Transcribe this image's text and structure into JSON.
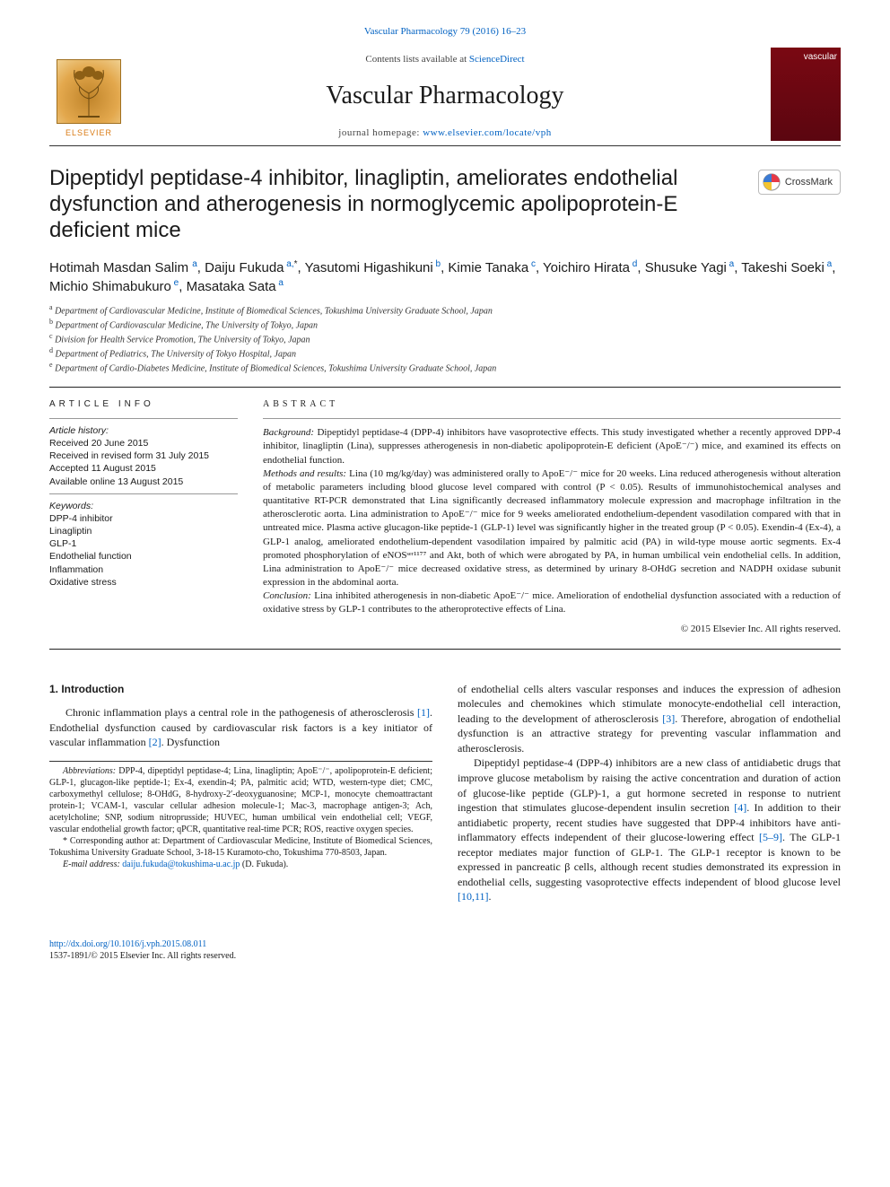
{
  "running_head": "Vascular Pharmacology 79 (2016) 16–23",
  "masthead": {
    "contents_prefix": "Contents lists available at ",
    "contents_link": "ScienceDirect",
    "journal": "Vascular Pharmacology",
    "homepage_prefix": "journal homepage: ",
    "homepage_link": "www.elsevier.com/locate/vph",
    "elsevier": "ELSEVIER",
    "cover_label": "vascular"
  },
  "crossmark": "CrossMark",
  "title": "Dipeptidyl peptidase-4 inhibitor, linagliptin, ameliorates endothelial dysfunction and atherogenesis in normoglycemic apolipoprotein-E deficient mice",
  "authors_html": "Hotimah Masdan Salim <span class='sup'>a</span>, Daiju Fukuda<span class='sup'> a,</span><span class='sup star'>*</span>, Yasutomi Higashikuni<span class='sup'> b</span>, Kimie Tanaka<span class='sup'> c</span>, Yoichiro Hirata<span class='sup'> d</span>, Shusuke Yagi<span class='sup'> a</span>, Takeshi Soeki<span class='sup'> a</span>, Michio Shimabukuro<span class='sup'> e</span>, Masataka Sata<span class='sup'> a</span>",
  "affiliations": [
    {
      "key": "a",
      "text": "Department of Cardiovascular Medicine, Institute of Biomedical Sciences, Tokushima University Graduate School, Japan"
    },
    {
      "key": "b",
      "text": "Department of Cardiovascular Medicine, The University of Tokyo, Japan"
    },
    {
      "key": "c",
      "text": "Division for Health Service Promotion, The University of Tokyo, Japan"
    },
    {
      "key": "d",
      "text": "Department of Pediatrics, The University of Tokyo Hospital, Japan"
    },
    {
      "key": "e",
      "text": "Department of Cardio-Diabetes Medicine, Institute of Biomedical Sciences, Tokushima University Graduate School, Japan"
    }
  ],
  "info": {
    "head": "ARTICLE INFO",
    "history_label": "Article history:",
    "history": [
      "Received 20 June 2015",
      "Received in revised form 31 July 2015",
      "Accepted 11 August 2015",
      "Available online 13 August 2015"
    ],
    "keywords_label": "Keywords:",
    "keywords": [
      "DPP-4 inhibitor",
      "Linagliptin",
      "GLP-1",
      "Endothelial function",
      "Inflammation",
      "Oxidative stress"
    ]
  },
  "abstract": {
    "head": "ABSTRACT",
    "background_label": "Background:",
    "background": " Dipeptidyl peptidase-4 (DPP-4) inhibitors have vasoprotective effects. This study investigated whether a recently approved DPP-4 inhibitor, linagliptin (Lina), suppresses atherogenesis in non-diabetic apolipoprotein-E deficient (ApoE⁻/⁻) mice, and examined its effects on endothelial function.",
    "methods_label": "Methods and results:",
    "methods": " Lina (10 mg/kg/day) was administered orally to ApoE⁻/⁻ mice for 20 weeks. Lina reduced atherogenesis without alteration of metabolic parameters including blood glucose level compared with control (P < 0.05). Results of immunohistochemical analyses and quantitative RT-PCR demonstrated that Lina significantly decreased inflammatory molecule expression and macrophage infiltration in the atherosclerotic aorta. Lina administration to ApoE⁻/⁻ mice for 9 weeks ameliorated endothelium-dependent vasodilation compared with that in untreated mice. Plasma active glucagon-like peptide-1 (GLP-1) level was significantly higher in the treated group (P < 0.05). Exendin-4 (Ex-4), a GLP-1 analog, ameliorated endothelium-dependent vasodilation impaired by palmitic acid (PA) in wild-type mouse aortic segments. Ex-4 promoted phosphorylation of eNOSˢᵉʳ¹¹⁷⁷ and Akt, both of which were abrogated by PA, in human umbilical vein endothelial cells. In addition, Lina administration to ApoE⁻/⁻ mice decreased oxidative stress, as determined by urinary 8-OHdG secretion and NADPH oxidase subunit expression in the abdominal aorta.",
    "conclusion_label": "Conclusion:",
    "conclusion": " Lina inhibited atherogenesis in non-diabetic ApoE⁻/⁻ mice. Amelioration of endothelial dysfunction associated with a reduction of oxidative stress by GLP-1 contributes to the atheroprotective effects of Lina.",
    "copyright": "© 2015 Elsevier Inc. All rights reserved."
  },
  "intro": {
    "head": "1. Introduction",
    "p1a": "Chronic inflammation plays a central role in the pathogenesis of atherosclerosis ",
    "ref1": "[1]",
    "p1b": ". Endothelial dysfunction caused by cardiovascular risk factors is a key initiator of vascular inflammation ",
    "ref2": "[2]",
    "p1c": ". Dysfunction",
    "p2a": "of endothelial cells alters vascular responses and induces the expression of adhesion molecules and chemokines which stimulate monocyte-endothelial cell interaction, leading to the development of atherosclerosis ",
    "ref3": "[3]",
    "p2b": ". Therefore, abrogation of endothelial dysfunction is an attractive strategy for preventing vascular inflammation and atherosclerosis.",
    "p3a": "Dipeptidyl peptidase-4 (DPP-4) inhibitors are a new class of antidiabetic drugs that improve glucose metabolism by raising the active concentration and duration of action of glucose-like peptide (GLP)-1, a gut hormone secreted in response to nutrient ingestion that stimulates glucose-dependent insulin secretion ",
    "ref4": "[4]",
    "p3b": ". In addition to their antidiabetic property, recent studies have suggested that DPP-4 inhibitors have anti-inflammatory effects independent of their glucose-lowering effect ",
    "ref59": "[5–9]",
    "p3c": ". The GLP-1 receptor mediates major function of GLP-1. The GLP-1 receptor is known to be expressed in pancreatic β cells, although recent studies demonstrated its expression in endothelial cells, suggesting vasoprotective effects independent of blood glucose level ",
    "ref1011": "[10,11]",
    "p3d": "."
  },
  "footnotes": {
    "abbr_label": "Abbreviations:",
    "abbr": " DPP-4, dipeptidyl peptidase-4; Lina, linagliptin; ApoE⁻/⁻, apolipoprotein-E deficient; GLP-1, glucagon-like peptide-1; Ex-4, exendin-4; PA, palmitic acid; WTD, western-type diet; CMC, carboxymethyl cellulose; 8-OHdG, 8-hydroxy-2′-deoxyguanosine; MCP-1, monocyte chemoattractant protein-1; VCAM-1, vascular cellular adhesion molecule-1; Mac-3, macrophage antigen-3; Ach, acetylcholine; SNP, sodium nitroprusside; HUVEC, human umbilical vein endothelial cell; VEGF, vascular endothelial growth factor; qPCR, quantitative real-time PCR; ROS, reactive oxygen species.",
    "corr": "* Corresponding author at: Department of Cardiovascular Medicine, Institute of Biomedical Sciences, Tokushima University Graduate School, 3-18-15 Kuramoto-cho, Tokushima 770-8503, Japan.",
    "email_label": "E-mail address:",
    "email": "daiju.fukuda@tokushima-u.ac.jp",
    "email_suffix": " (D. Fukuda)."
  },
  "doi": {
    "link": "http://dx.doi.org/10.1016/j.vph.2015.08.011",
    "line2": "1537-1891/© 2015 Elsevier Inc. All rights reserved."
  },
  "colors": {
    "link": "#0061c2",
    "cover_bg": "#6f0a12",
    "elsevier_orange": "#d97a13"
  }
}
